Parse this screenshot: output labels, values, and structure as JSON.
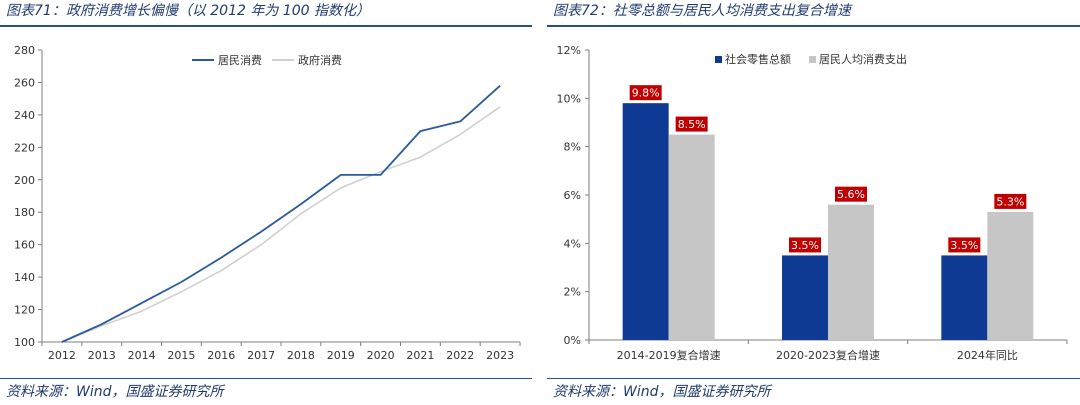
{
  "left": {
    "title": "图表71：政府消费增长偏慢（以 2012 年为 100 指数化）",
    "source": "资料来源：Wind，国盛证券研究所",
    "chart_data": {
      "type": "line",
      "title": "",
      "xlabel": "",
      "ylabel": "",
      "x": [
        "2012",
        "2013",
        "2014",
        "2015",
        "2016",
        "2017",
        "2018",
        "2019",
        "2020",
        "2021",
        "2022",
        "2023"
      ],
      "ylim": [
        100,
        280
      ],
      "yticks": [
        100,
        120,
        140,
        160,
        180,
        200,
        220,
        240,
        260,
        280
      ],
      "grid": false,
      "legend": "top-center",
      "series": [
        {
          "name": "居民消费",
          "color": "#2a5a9b",
          "values": [
            100,
            111,
            124,
            137,
            152,
            168,
            185,
            203,
            203,
            230,
            236,
            258
          ]
        },
        {
          "name": "政府消费",
          "color": "#d0d0d0",
          "values": [
            100,
            110,
            119,
            131,
            144,
            160,
            179,
            195,
            205,
            214,
            228,
            245
          ]
        }
      ]
    }
  },
  "right": {
    "title": "图表72：社零总额与居民人均消费支出复合增速",
    "source": "资料来源：Wind，国盛证券研究所",
    "chart_data": {
      "type": "bar",
      "title": "",
      "xlabel": "",
      "ylabel": "",
      "categories": [
        "2014-2019复合增速",
        "2020-2023复合增速",
        "2024年同比"
      ],
      "ylim": [
        0,
        12
      ],
      "yticks": [
        "0%",
        "2%",
        "4%",
        "6%",
        "8%",
        "10%",
        "12%"
      ],
      "grid": false,
      "legend": "top-left",
      "series": [
        {
          "name": "社会零售总额",
          "color": "#0f3a93",
          "values": [
            9.8,
            3.5,
            3.5
          ],
          "labels": [
            "9.8%",
            "3.5%",
            "3.5%"
          ]
        },
        {
          "name": "居民人均消费支出",
          "color": "#c6c6c6",
          "values": [
            8.5,
            5.6,
            5.3
          ],
          "labels": [
            "8.5%",
            "5.6%",
            "5.3%"
          ]
        }
      ],
      "label_color": "#c00000"
    }
  }
}
